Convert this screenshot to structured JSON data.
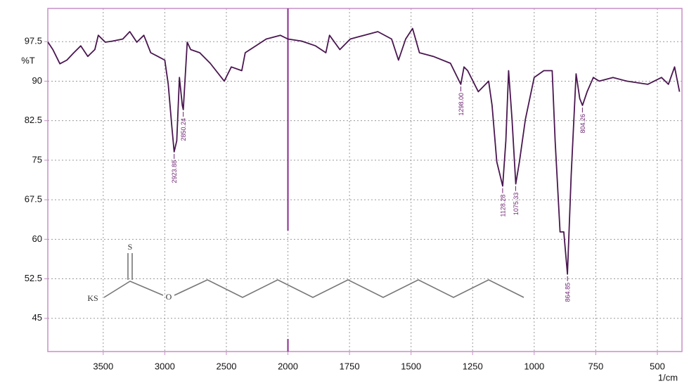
{
  "chart_data": {
    "type": "line",
    "y_label": "%T",
    "x_label": "1/cm",
    "xlim": [
      3950,
      400
    ],
    "ylim": [
      38.7,
      103.8
    ],
    "scale_change": {
      "at": 2000,
      "factor": 2
    },
    "xticks": [
      3500,
      3000,
      2500,
      2000,
      1750,
      1500,
      1250,
      1000,
      750,
      500
    ],
    "yticks": [
      45,
      52.5,
      60,
      67.5,
      75,
      82.5,
      90,
      97.5
    ],
    "grid": true,
    "series": [
      {
        "name": "IR spectrum",
        "color": "#4a1650",
        "x": [
          3949,
          3909,
          3852,
          3795,
          3739,
          3682,
          3625,
          3568,
          3540,
          3483,
          3426,
          3341,
          3284,
          3227,
          3170,
          3114,
          3057,
          3000,
          2972,
          2943,
          2924,
          2903,
          2881,
          2858,
          2850,
          2818,
          2790,
          2716,
          2631,
          2517,
          2460,
          2375,
          2347,
          2261,
          2176,
          2062,
          2000,
          1944,
          1888,
          1846,
          1831,
          1789,
          1747,
          1691,
          1635,
          1579,
          1551,
          1522,
          1494,
          1466,
          1410,
          1340,
          1298,
          1285,
          1270,
          1227,
          1185,
          1171,
          1152,
          1128,
          1115,
          1104,
          1090,
          1075,
          1060,
          1036,
          1000,
          961,
          927,
          915,
          895,
          880,
          865,
          850,
          830,
          815,
          804,
          785,
          760,
          736,
          680,
          624,
          539,
          483,
          455,
          430,
          410
        ],
        "values": [
          97.4,
          96.0,
          93.3,
          94.0,
          95.4,
          96.7,
          94.7,
          96.0,
          98.7,
          97.4,
          97.6,
          98.0,
          99.4,
          97.4,
          98.7,
          95.4,
          94.7,
          94.0,
          89.4,
          81.4,
          76.6,
          78.7,
          90.7,
          85.4,
          84.6,
          97.4,
          96.0,
          95.4,
          93.4,
          90.0,
          92.7,
          92.0,
          95.4,
          96.7,
          98.0,
          98.7,
          98.0,
          97.6,
          96.7,
          95.4,
          98.7,
          96.0,
          98.0,
          98.7,
          99.4,
          98.0,
          94.0,
          98.0,
          100.0,
          95.4,
          94.7,
          93.4,
          89.4,
          92.7,
          92.0,
          88.0,
          90.0,
          85.4,
          74.7,
          70.1,
          78.7,
          92.0,
          82.7,
          70.5,
          74.7,
          82.7,
          90.7,
          92.0,
          92.0,
          78.7,
          61.4,
          61.4,
          53.4,
          72.1,
          91.4,
          86.7,
          85.4,
          88.0,
          90.7,
          90.0,
          90.7,
          90.0,
          89.4,
          90.7,
          89.4,
          92.7,
          88.0
        ]
      }
    ],
    "annotations": [
      {
        "x": 2923.88,
        "y": 76.6,
        "label": "2923.88"
      },
      {
        "x": 2850.24,
        "y": 84.6,
        "label": "2850.24"
      },
      {
        "x": 1298.0,
        "y": 89.4,
        "label": "1298.00"
      },
      {
        "x": 1128.28,
        "y": 70.1,
        "label": "1128.28"
      },
      {
        "x": 1075.33,
        "y": 70.5,
        "label": "1075.33"
      },
      {
        "x": 864.85,
        "y": 53.4,
        "label": "864.85"
      },
      {
        "x": 804.26,
        "y": 85.4,
        "label": "804.26"
      }
    ],
    "structure_labels": [
      "S",
      "KS",
      "O"
    ]
  }
}
